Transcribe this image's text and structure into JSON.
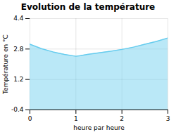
{
  "chart_data": {
    "type": "area",
    "title": "Evolution de la température",
    "xlabel": "heure par heure",
    "ylabel": "Température en °C",
    "x": [
      0,
      0.25,
      0.5,
      0.75,
      1.0,
      1.1,
      1.25,
      1.5,
      1.75,
      2.0,
      2.25,
      2.5,
      2.75,
      3.0
    ],
    "values": [
      3.05,
      2.82,
      2.65,
      2.52,
      2.42,
      2.45,
      2.52,
      2.6,
      2.68,
      2.78,
      2.9,
      3.05,
      3.2,
      3.38
    ],
    "color": "#66ccee",
    "xlim": [
      0,
      3
    ],
    "ylim": [
      -0.4,
      4.4
    ],
    "xticks": [
      0,
      1,
      2,
      3
    ],
    "yticks": [
      -0.4,
      1.2,
      2.8,
      4.4
    ],
    "grid": true
  }
}
